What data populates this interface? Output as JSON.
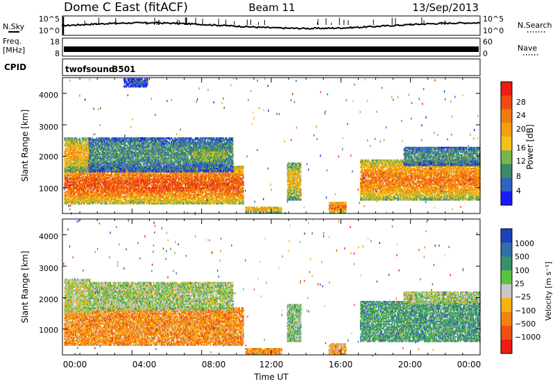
{
  "header": {
    "station": "Dome C East (fitACF)",
    "beam": "Beam 11",
    "date": "13/Sep/2013"
  },
  "noise_panel": {
    "left_label": "N.Sky",
    "left_ticks": [
      "10^5",
      "10^0"
    ],
    "right_ticks": [
      "10^5",
      "10^0"
    ],
    "right_label": "N.Search"
  },
  "freq_panel": {
    "left_label_1": "Freq.",
    "left_label_2": "[MHz]",
    "left_ticks": [
      "18",
      "8"
    ],
    "right_ticks": [
      "60",
      "0"
    ],
    "right_label": "Nave"
  },
  "cpid_panel": {
    "label": "CPID",
    "program": "twofsound",
    "cpid": "3501"
  },
  "xaxis": {
    "label": "Time UT",
    "ticks": [
      "00:00",
      "04:00",
      "08:00",
      "12:00",
      "16:00",
      "20:00",
      "00:00"
    ]
  },
  "chart_data": [
    {
      "type": "heatmap",
      "title": "",
      "xlabel": "Time UT",
      "ylabel": "Slant Range [km]",
      "x_range_hours": [
        0,
        24
      ],
      "ylim_km": [
        180,
        4500
      ],
      "yticks": [
        "1000",
        "2000",
        "3000",
        "4000"
      ],
      "colorbar": {
        "label": "Power [dB]",
        "ticks": [
          "4",
          "8",
          "12",
          "16",
          "20",
          "24",
          "28"
        ],
        "range": [
          0,
          30
        ],
        "colors": [
          "#1a1aff",
          "#2f62c4",
          "#3c8a6a",
          "#79b54a",
          "#f4c217",
          "#f5a00d",
          "#ef7d0e",
          "#ef4b12",
          "#ee1c13"
        ]
      },
      "echo_regions": [
        {
          "t0": 0.1,
          "t1": 10.4,
          "r0": 480,
          "r1": 1700,
          "level": 0.82
        },
        {
          "t0": 0.1,
          "t1": 1.6,
          "r0": 1500,
          "r1": 2600,
          "level": 0.6
        },
        {
          "t0": 1.5,
          "t1": 9.8,
          "r0": 1500,
          "r1": 2600,
          "level": 0.3
        },
        {
          "t0": 7.5,
          "t1": 9.3,
          "r0": 1700,
          "r1": 2300,
          "level": 0.4
        },
        {
          "t0": 3.5,
          "t1": 4.9,
          "r0": 4200,
          "r1": 4480,
          "level": 0.15
        },
        {
          "t0": 10.5,
          "t1": 12.6,
          "r0": 200,
          "r1": 400,
          "level": 0.6
        },
        {
          "t0": 12.9,
          "t1": 13.7,
          "r0": 600,
          "r1": 1800,
          "level": 0.55
        },
        {
          "t0": 15.3,
          "t1": 16.3,
          "r0": 200,
          "r1": 550,
          "level": 0.78
        },
        {
          "t0": 17.1,
          "t1": 24.0,
          "r0": 600,
          "r1": 1900,
          "level": 0.72
        },
        {
          "t0": 19.6,
          "t1": 24.0,
          "r0": 1700,
          "r1": 2300,
          "level": 0.3
        }
      ]
    },
    {
      "type": "heatmap",
      "title": "",
      "xlabel": "Time UT",
      "ylabel": "Slant Range [km]",
      "x_range_hours": [
        0,
        24
      ],
      "ylim_km": [
        180,
        4500
      ],
      "yticks": [
        "1000",
        "2000",
        "3000",
        "4000"
      ],
      "colorbar": {
        "label": "Velocity [m s⁻¹]",
        "ticks": [
          "1000",
          "500",
          "100",
          "25",
          "−25",
          "−100",
          "−500",
          "−1000"
        ],
        "colors": [
          "#1f3fbf",
          "#2f6fa8",
          "#3a8f6a",
          "#5cc43c",
          "#c8c8c8",
          "#f6b40c",
          "#f5820f",
          "#ef5012",
          "#ee1c13"
        ]
      },
      "echo_regions": [
        {
          "t0": 0.1,
          "t1": 10.4,
          "r0": 480,
          "r1": 1700,
          "level": 0.7
        },
        {
          "t0": 0.1,
          "t1": 1.6,
          "r0": 1500,
          "r1": 2600,
          "level": 0.5
        },
        {
          "t0": 1.5,
          "t1": 9.8,
          "r0": 1600,
          "r1": 2500,
          "level": 0.45
        },
        {
          "t0": 10.5,
          "t1": 12.6,
          "r0": 200,
          "r1": 400,
          "level": 0.7
        },
        {
          "t0": 12.9,
          "t1": 13.7,
          "r0": 600,
          "r1": 1800,
          "level": 0.4
        },
        {
          "t0": 15.3,
          "t1": 16.3,
          "r0": 200,
          "r1": 550,
          "level": 0.65
        },
        {
          "t0": 17.1,
          "t1": 24.0,
          "r0": 600,
          "r1": 1900,
          "level": 0.3
        },
        {
          "t0": 19.6,
          "t1": 24.0,
          "r0": 1800,
          "r1": 2200,
          "level": 0.45
        }
      ]
    }
  ]
}
